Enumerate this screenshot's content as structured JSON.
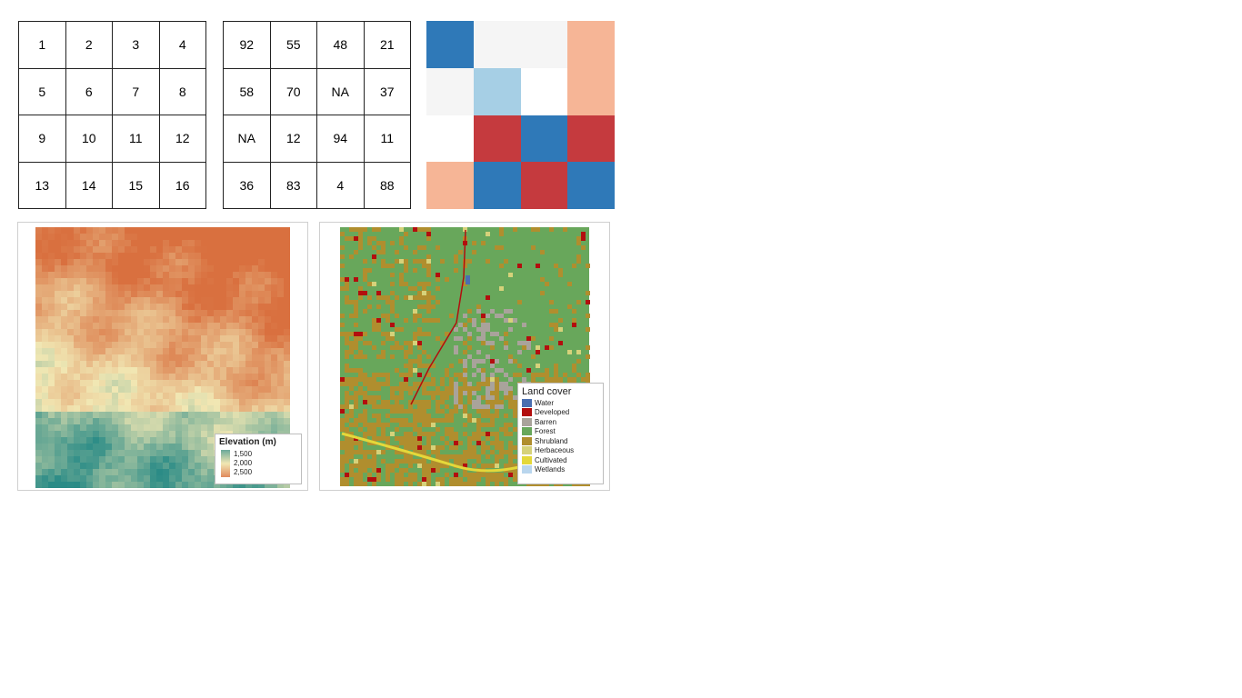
{
  "cell_id_grid": [
    "1",
    "2",
    "3",
    "4",
    "5",
    "6",
    "7",
    "8",
    "9",
    "10",
    "11",
    "12",
    "13",
    "14",
    "15",
    "16"
  ],
  "cell_value_grid": [
    "92",
    "55",
    "48",
    "21",
    "58",
    "70",
    "NA",
    "37",
    "NA",
    "12",
    "94",
    "11",
    "36",
    "83",
    "4",
    "88"
  ],
  "colored_grid": [
    "#2f79b8",
    "#f5f5f5",
    "#f5f5f5",
    "#f6b596",
    "#f5f5f5",
    "#a6cfe5",
    "#ffffff",
    "#f6b596",
    "#ffffff",
    "#c53a3e",
    "#2f79b8",
    "#c53a3e",
    "#f6b596",
    "#2f79b8",
    "#c53a3e",
    "#2f79b8"
  ],
  "elevation_map": {
    "legend_title": "Elevation (m)",
    "legend_ticks": [
      "1,500",
      "2,000",
      "2,500"
    ],
    "ramp_colors": [
      "#2a8b86",
      "#f1e7b3",
      "#d9703f"
    ]
  },
  "landcover_map": {
    "legend_title": "Land cover",
    "classes": [
      {
        "label": "Water",
        "color": "#4a6fb0"
      },
      {
        "label": "Developed",
        "color": "#b20e0e"
      },
      {
        "label": "Barren",
        "color": "#a9a39b"
      },
      {
        "label": "Forest",
        "color": "#68a75b"
      },
      {
        "label": "Shrubland",
        "color": "#b08e2e"
      },
      {
        "label": "Herbaceous",
        "color": "#d6d27a"
      },
      {
        "label": "Cultivated",
        "color": "#e4d83a"
      },
      {
        "label": "Wetlands",
        "color": "#b9d6ee"
      }
    ]
  }
}
